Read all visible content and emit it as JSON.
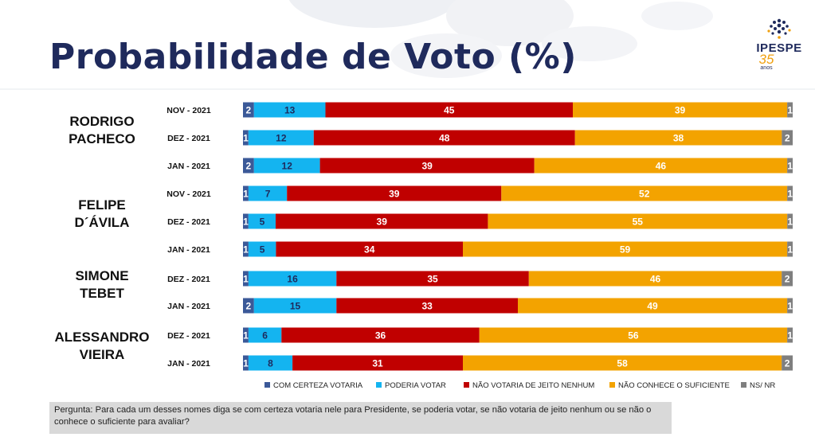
{
  "page": {
    "title": "Probabilidade de Voto (%)",
    "logo_text": "IPESPE",
    "logo_years": "35",
    "logo_years_suffix": "anos",
    "question": "Pergunta:  Para cada um desses nomes diga se com certeza votaria nele para Presidente, se poderia votar, se não votaria de jeito nenhum ou se não o conhece o suficiente para avaliar?"
  },
  "colors": {
    "title": "#1f2a5c",
    "brand_accent": "#f0a010"
  },
  "chart_data": {
    "type": "bar",
    "orientation": "horizontal",
    "stacked": true,
    "title": "Probabilidade de Voto (%)",
    "xlim": [
      0,
      100
    ],
    "grid": false,
    "legend_position": "bottom",
    "series": [
      {
        "name": "COM CERTEZA VOTARIA",
        "color": "#3b5998"
      },
      {
        "name": "PODERIA VOTAR",
        "color": "#14b4f0"
      },
      {
        "name": "NÃO VOTARIA DE JEITO NENHUM",
        "color": "#c00000"
      },
      {
        "name": "NÃO CONHECE O SUFICIENTE",
        "color": "#f3a300"
      },
      {
        "name": "NS/ NR",
        "color": "#7f7f7f"
      }
    ],
    "groups": [
      {
        "candidate": [
          "RODRIGO",
          "PACHECO"
        ],
        "rows": [
          {
            "period": "NOV - 2021",
            "values": [
              2,
              13,
              45,
              39,
              1
            ]
          },
          {
            "period": "DEZ - 2021",
            "values": [
              1,
              12,
              48,
              38,
              2
            ]
          },
          {
            "period": "JAN - 2021",
            "values": [
              2,
              12,
              39,
              46,
              1
            ]
          }
        ]
      },
      {
        "candidate": [
          "FELIPE",
          "D´ÁVILA"
        ],
        "rows": [
          {
            "period": "NOV - 2021",
            "values": [
              1,
              7,
              39,
              52,
              1
            ]
          },
          {
            "period": "DEZ - 2021",
            "values": [
              1,
              5,
              39,
              55,
              1
            ]
          },
          {
            "period": "JAN - 2021",
            "values": [
              1,
              5,
              34,
              59,
              1
            ]
          }
        ]
      },
      {
        "candidate": [
          "SIMONE",
          "TEBET"
        ],
        "rows": [
          {
            "period": "DEZ - 2021",
            "values": [
              1,
              16,
              35,
              46,
              2
            ]
          },
          {
            "period": "JAN - 2021",
            "values": [
              2,
              15,
              33,
              49,
              1
            ]
          }
        ]
      },
      {
        "candidate": [
          "ALESSANDRO",
          "VIEIRA"
        ],
        "rows": [
          {
            "period": "DEZ - 2021",
            "values": [
              1,
              6,
              36,
              56,
              1
            ]
          },
          {
            "period": "JAN - 2021",
            "values": [
              1,
              8,
              31,
              58,
              2
            ]
          }
        ]
      }
    ]
  }
}
